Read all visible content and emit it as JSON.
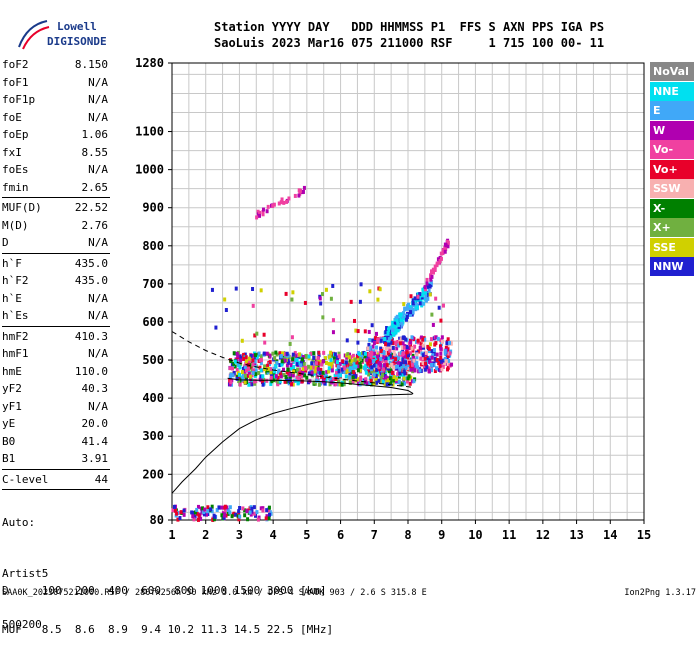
{
  "logo": {
    "line1": "Lowell",
    "line2": "DIGISONDE"
  },
  "header": {
    "labels": "Station YYYY DAY   DDD HHMMSS P1  FFS S AXN PPS IGA PS",
    "values": "SaoLuis 2023 Mar16 075 211000 RSF     1 715 100 00- 11"
  },
  "params": [
    {
      "label": "foF2",
      "value": "8.150"
    },
    {
      "label": "foF1",
      "value": "N/A"
    },
    {
      "label": "foF1p",
      "value": "N/A"
    },
    {
      "label": "foE",
      "value": "N/A"
    },
    {
      "label": "foEp",
      "value": "1.06"
    },
    {
      "label": "fxI",
      "value": "8.55"
    },
    {
      "label": "foEs",
      "value": "N/A"
    },
    {
      "label": "fmin",
      "value": "2.65"
    },
    {
      "sep": true
    },
    {
      "label": "MUF(D)",
      "value": "22.52"
    },
    {
      "label": "M(D)",
      "value": "2.76"
    },
    {
      "label": "D",
      "value": "N/A"
    },
    {
      "sep": true
    },
    {
      "label": "h`F",
      "value": "435.0"
    },
    {
      "label": "h`F2",
      "value": "435.0"
    },
    {
      "label": "h`E",
      "value": "N/A"
    },
    {
      "label": "h`Es",
      "value": "N/A"
    },
    {
      "sep": true
    },
    {
      "label": "hmF2",
      "value": "410.3"
    },
    {
      "label": "hmF1",
      "value": "N/A"
    },
    {
      "label": "hmE",
      "value": "110.0"
    },
    {
      "label": "yF2",
      "value": "40.3"
    },
    {
      "label": "yF1",
      "value": "N/A"
    },
    {
      "label": "yE",
      "value": "20.0"
    },
    {
      "label": "B0",
      "value": "41.4"
    },
    {
      "label": "B1",
      "value": "3.91"
    },
    {
      "sep": true
    },
    {
      "label": "C-level",
      "value": "44"
    },
    {
      "sep": true
    }
  ],
  "auto": {
    "line1": "Auto:",
    "line2": "Artist5",
    "line3": "500200"
  },
  "legend": [
    {
      "label": "NoVal",
      "color": "#888888"
    },
    {
      "label": "NNE",
      "color": "#00e0f0"
    },
    {
      "label": "E",
      "color": "#40a8f8"
    },
    {
      "label": "W",
      "color": "#b000b0"
    },
    {
      "label": "Vo-",
      "color": "#f040a0"
    },
    {
      "label": "Vo+",
      "color": "#e8002a"
    },
    {
      "label": "SSW",
      "color": "#f8b0b0"
    },
    {
      "label": "X-",
      "color": "#008000"
    },
    {
      "label": "X+",
      "color": "#70b040"
    },
    {
      "label": "SSE",
      "color": "#d0d000"
    },
    {
      "label": "NNW",
      "color": "#2020d0"
    }
  ],
  "muf_table": {
    "d_row": "D     100  200  400  600  800 1000 1500 3000 [km]",
    "muf_row": "MUF   8.5  8.6  8.9  9.4 10.2 11.3 14.5 22.5 [MHz]"
  },
  "footer": "SAA0K_2023075211000.RSF / 280fx256h 50 kHz 5.0 km / DPS-4 SAA0K 903 / 2.6 S 315.8 E",
  "version": "Ion2Png 1.3.17",
  "chart_data": {
    "type": "scatter",
    "title": "",
    "xlabel": "",
    "ylabel": "",
    "xlim": [
      1,
      15
    ],
    "ylim": [
      80,
      1280
    ],
    "x_ticks": [
      1,
      2,
      3,
      4,
      5,
      6,
      7,
      8,
      9,
      10,
      11,
      12,
      13,
      14,
      15
    ],
    "y_ticks": [
      80,
      200,
      300,
      400,
      500,
      600,
      700,
      800,
      900,
      1000,
      1100,
      1280
    ],
    "grid": true,
    "profile_line": {
      "x": [
        1.0,
        1.3,
        1.7,
        2.0,
        2.5,
        3.0,
        3.5,
        4.0,
        4.5,
        5.0,
        5.5,
        6.0,
        6.5,
        7.0,
        7.5,
        8.0,
        8.1,
        8.15
      ],
      "y": [
        150,
        180,
        215,
        245,
        285,
        320,
        343,
        360,
        372,
        383,
        393,
        398,
        403,
        407,
        409,
        410,
        410,
        412
      ]
    },
    "profile_curve_upper": {
      "x": [
        8.15,
        8.0,
        7.5,
        7.0,
        6.5,
        6.0,
        5.5,
        5.0,
        4.5,
        4.0,
        3.5,
        3.0,
        2.65
      ],
      "y": [
        412,
        420,
        428,
        432,
        436,
        440,
        443,
        445,
        446,
        447,
        447,
        448,
        452
      ]
    },
    "profile_dashed": {
      "x": [
        1.0,
        1.5,
        2.0,
        2.5,
        3.0,
        3.5,
        4.0,
        5.0,
        6.0,
        7.0,
        8.0,
        8.15
      ],
      "y": [
        575,
        548,
        525,
        507,
        492,
        482,
        474,
        462,
        450,
        440,
        430,
        428
      ]
    },
    "echo_clusters": [
      {
        "name": "F2 trace",
        "x_range": [
          2.7,
          8.2
        ],
        "y_range": [
          435,
          520
        ],
        "colors": [
          "#2020d0",
          "#b000b0",
          "#f040a0",
          "#e8002a",
          "#40a8f8",
          "#d0d000",
          "#70b040",
          "#008000",
          "#00e0f0"
        ],
        "count": 900
      },
      {
        "name": "F2 O-mode high",
        "x_range": [
          6.8,
          9.3
        ],
        "y_range": [
          470,
          560
        ],
        "colors": [
          "#2020d0",
          "#b000b0",
          "#f040a0",
          "#e8002a",
          "#f8b0b0",
          "#40a8f8"
        ],
        "count": 350
      },
      {
        "name": "E/W branch",
        "x_range": [
          7.3,
          8.7
        ],
        "y_range": [
          560,
          690
        ],
        "colors": [
          "#40a8f8",
          "#00e0f0",
          "#2020d0"
        ],
        "count": 180
      },
      {
        "name": "upper branch",
        "x_range": [
          8.5,
          9.2
        ],
        "y_range": [
          690,
          810
        ],
        "colors": [
          "#b000b0",
          "#f040a0"
        ],
        "count": 40
      },
      {
        "name": "second hop",
        "x_range": [
          3.5,
          5.0
        ],
        "y_range": [
          880,
          950
        ],
        "colors": [
          "#b000b0",
          "#f040a0"
        ],
        "count": 30
      },
      {
        "name": "low-height noise",
        "x_range": [
          1.0,
          4.0
        ],
        "y_range": [
          80,
          115
        ],
        "colors": [
          "#2020d0",
          "#b000b0",
          "#f040a0",
          "#008000",
          "#40a8f8",
          "#e8002a"
        ],
        "count": 120
      },
      {
        "name": "mid scatter",
        "x_range": [
          2.0,
          9.5
        ],
        "y_range": [
          540,
          700
        ],
        "colors": [
          "#2020d0",
          "#b000b0",
          "#f040a0",
          "#e8002a",
          "#70b040",
          "#d0d000"
        ],
        "count": 60
      }
    ]
  }
}
